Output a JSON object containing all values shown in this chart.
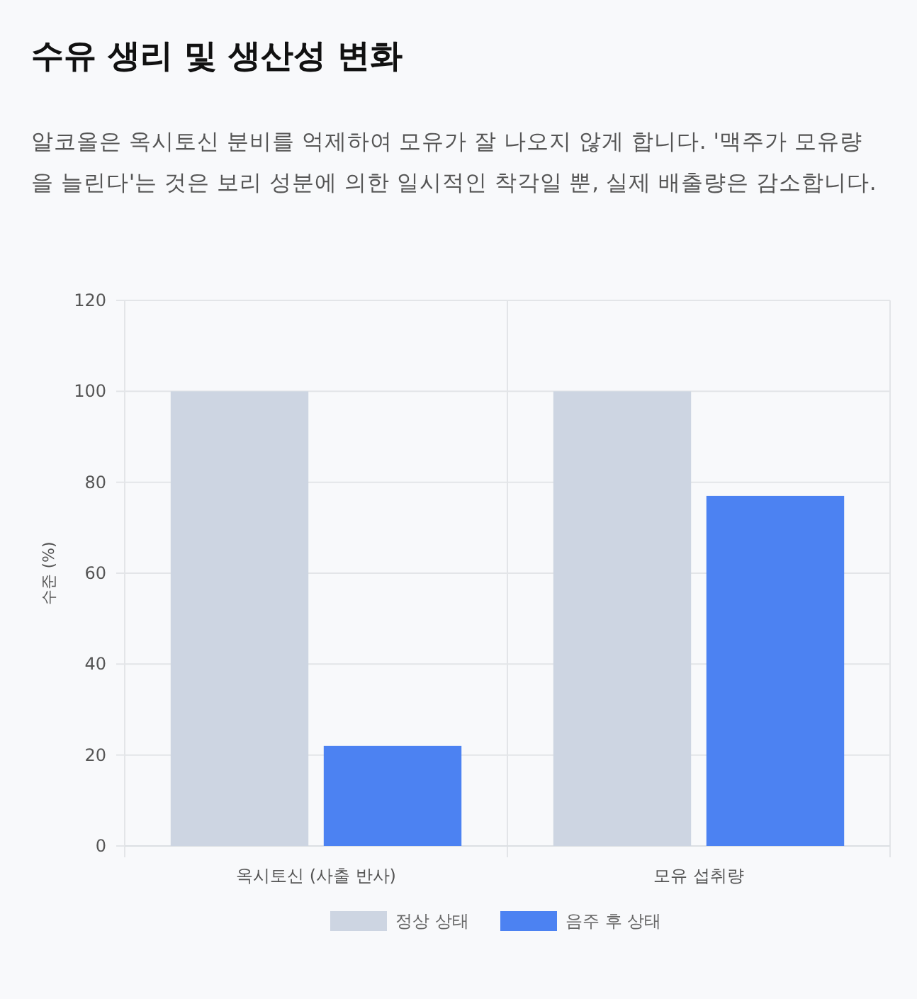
{
  "chart_data": {
    "type": "bar",
    "title": "수유 생리 및 생산성 변화",
    "subtitle": "알코올은 옥시토신 분비를 억제하여 모유가 잘 나오지 않게 합니다. '맥주가 모유량을 늘린다'는 것은 보리 성분에 의한 일시적인 착각일 뿐, 실제 배출량은 감소합니다.",
    "ylabel": "수준 (%)",
    "categories": [
      "옥시토신 (사출 반사)",
      "모유 섭취량"
    ],
    "series": [
      {
        "name": "정상 상태",
        "color": "#cdd5e2",
        "values": [
          100,
          100
        ]
      },
      {
        "name": "음주 후 상태",
        "color": "#4c82f2",
        "values": [
          22,
          77
        ]
      }
    ],
    "ylim": [
      0,
      120
    ],
    "yticks": [
      0,
      20,
      40,
      60,
      80,
      100,
      120
    ],
    "grid": true,
    "legend": "bottom"
  }
}
